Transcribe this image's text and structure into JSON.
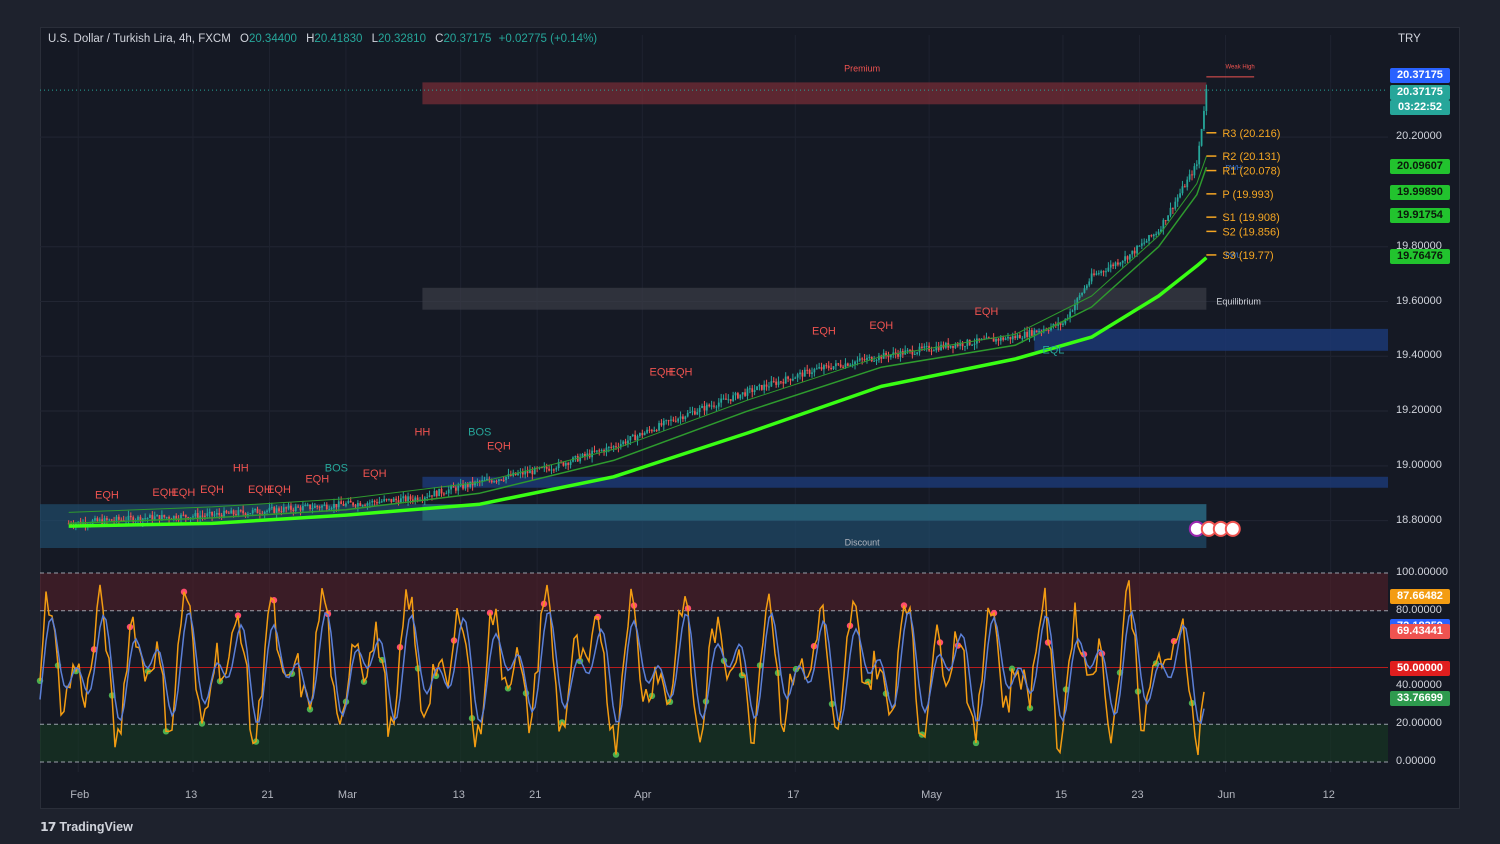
{
  "header": {
    "symbol": "U.S. Dollar / Turkish Lira, 4h, FXCM",
    "o_label": "O",
    "o_value": "20.34400",
    "h_label": "H",
    "h_value": "20.41830",
    "l_label": "L",
    "l_value": "20.32810",
    "c_label": "C",
    "c_value": "20.37175",
    "change": "+0.02775 (+0.14%)",
    "currency": "TRY"
  },
  "footer": {
    "logo_mark": "17",
    "logo_text": "TradingView"
  },
  "colors": {
    "background": "#151924",
    "up": "#26a69a",
    "down": "#ef5350",
    "ema_bright": "#39ff14",
    "ema_dark": "#2e9a2e",
    "premium_zone": "#7a2d37",
    "discount_zone": "#1f4b6b",
    "equilibrium_zone": "#3a3d47",
    "pivot": "#f5a623",
    "rsi_line": "#5b7fd6",
    "stoch_line": "#f39c12"
  },
  "chart_data": [
    {
      "type": "candlestick",
      "title": "U.S. Dollar / Turkish Lira, 4h, FXCM",
      "ylim": [
        18.7,
        20.5
      ],
      "y_ticks": [
        "20.20000",
        "19.80000",
        "19.60000",
        "19.40000",
        "19.20000",
        "19.00000",
        "18.80000"
      ],
      "x_ticks": [
        "Feb",
        "13",
        "21",
        "Mar",
        "13",
        "21",
        "Apr",
        "17",
        "May",
        "15",
        "23",
        "Jun",
        "12"
      ],
      "x_dates": [
        "2023-02-01",
        "2023-02-13",
        "2023-02-21",
        "2023-03-01",
        "2023-03-13",
        "2023-03-21",
        "2023-04-01",
        "2023-04-17",
        "2023-05-01",
        "2023-05-15",
        "2023-05-23",
        "2023-06-01",
        "2023-06-12"
      ],
      "close_path": [
        [
          "2023-01-31",
          18.79
        ],
        [
          "2023-02-08",
          18.81
        ],
        [
          "2023-02-15",
          18.82
        ],
        [
          "2023-02-22",
          18.84
        ],
        [
          "2023-03-01",
          18.86
        ],
        [
          "2023-03-08",
          18.88
        ],
        [
          "2023-03-15",
          18.94
        ],
        [
          "2023-03-22",
          18.99
        ],
        [
          "2023-03-29",
          19.07
        ],
        [
          "2023-04-05",
          19.18
        ],
        [
          "2023-04-12",
          19.27
        ],
        [
          "2023-04-19",
          19.35
        ],
        [
          "2023-04-26",
          19.4
        ],
        [
          "2023-05-03",
          19.44
        ],
        [
          "2023-05-10",
          19.47
        ],
        [
          "2023-05-15",
          19.52
        ],
        [
          "2023-05-18",
          19.69
        ],
        [
          "2023-05-22",
          19.77
        ],
        [
          "2023-05-25",
          19.86
        ],
        [
          "2023-05-27",
          19.98
        ],
        [
          "2023-05-29",
          20.1
        ],
        [
          "2023-05-30",
          20.37175
        ]
      ],
      "ema_fast": [
        [
          "2023-01-31",
          18.79
        ],
        [
          "2023-02-15",
          18.81
        ],
        [
          "2023-03-01",
          18.84
        ],
        [
          "2023-03-15",
          18.9
        ],
        [
          "2023-03-29",
          19.02
        ],
        [
          "2023-04-12",
          19.2
        ],
        [
          "2023-04-26",
          19.36
        ],
        [
          "2023-05-10",
          19.44
        ],
        [
          "2023-05-18",
          19.58
        ],
        [
          "2023-05-25",
          19.8
        ],
        [
          "2023-05-29",
          19.99
        ],
        [
          "2023-05-30",
          20.09
        ]
      ],
      "ema_slow": [
        [
          "2023-01-31",
          18.78
        ],
        [
          "2023-02-15",
          18.79
        ],
        [
          "2023-03-01",
          18.82
        ],
        [
          "2023-03-15",
          18.86
        ],
        [
          "2023-03-29",
          18.96
        ],
        [
          "2023-04-12",
          19.12
        ],
        [
          "2023-04-26",
          19.29
        ],
        [
          "2023-05-10",
          19.39
        ],
        [
          "2023-05-18",
          19.47
        ],
        [
          "2023-05-25",
          19.62
        ],
        [
          "2023-05-29",
          19.73
        ],
        [
          "2023-05-30",
          19.76
        ]
      ],
      "zones": [
        {
          "label": "Premium",
          "from": 20.32,
          "to": 20.4,
          "color": "#7a2d37"
        },
        {
          "label": "Equilibrium",
          "from": 19.57,
          "to": 19.65,
          "color": "#3a3d47"
        },
        {
          "label": "Discount",
          "from": 18.7,
          "to": 18.86,
          "color": "#1f4b6b"
        }
      ],
      "pivots": [
        {
          "label": "R3 (20.216)",
          "value": 20.216
        },
        {
          "label": "R2 (20.131)",
          "value": 20.131
        },
        {
          "label": "R1 (20.078)",
          "value": 20.078
        },
        {
          "label": "P (19.993)",
          "value": 19.993
        },
        {
          "label": "S1 (19.908)",
          "value": 19.908
        },
        {
          "label": "S2 (19.856)",
          "value": 19.856
        },
        {
          "label": "S3 (19.77)",
          "value": 19.77
        }
      ],
      "structure_labels": [
        {
          "text": "EQH",
          "date": "2023-02-04",
          "value": 18.88
        },
        {
          "text": "EQH",
          "date": "2023-02-10",
          "value": 18.89
        },
        {
          "text": "EQH",
          "date": "2023-02-12",
          "value": 18.89
        },
        {
          "text": "EQH",
          "date": "2023-02-15",
          "value": 18.9
        },
        {
          "text": "HH",
          "date": "2023-02-18",
          "value": 18.98
        },
        {
          "text": "EQH",
          "date": "2023-02-20",
          "value": 18.9
        },
        {
          "text": "EQH",
          "date": "2023-02-22",
          "value": 18.9
        },
        {
          "text": "EQH",
          "date": "2023-02-26",
          "value": 18.94
        },
        {
          "text": "BOS",
          "date": "2023-02-28",
          "value": 18.98
        },
        {
          "text": "EQH",
          "date": "2023-03-04",
          "value": 18.96
        },
        {
          "text": "HH",
          "date": "2023-03-09",
          "value": 19.11
        },
        {
          "text": "BOS",
          "date": "2023-03-15",
          "value": 19.11
        },
        {
          "text": "EQH",
          "date": "2023-03-17",
          "value": 19.06
        },
        {
          "text": "EQH",
          "date": "2023-04-03",
          "value": 19.33
        },
        {
          "text": "EQH",
          "date": "2023-04-05",
          "value": 19.33
        },
        {
          "text": "EQH",
          "date": "2023-04-20",
          "value": 19.48
        },
        {
          "text": "EQH",
          "date": "2023-04-26",
          "value": 19.5
        },
        {
          "text": "EQH",
          "date": "2023-05-07",
          "value": 19.55
        },
        {
          "text": "EQL",
          "date": "2023-05-14",
          "value": 19.41
        }
      ],
      "last_price_tags": [
        "20.37175",
        "20.37175",
        "03:22:52"
      ],
      "ema_tags": [
        "20.09607",
        "19.99890",
        "19.91754",
        "19.76476"
      ],
      "annotations": [
        "Weak High",
        "PWH",
        "PWL",
        "Discount",
        "Premium",
        "Equilibrium"
      ]
    },
    {
      "type": "line",
      "title": "",
      "ylim": [
        0,
        100
      ],
      "y_ticks": [
        "100.00000",
        "80.00000",
        "40.00000",
        "20.00000",
        "0.00000"
      ],
      "levels": [
        100,
        80,
        50,
        20,
        0
      ],
      "series_tags": [
        {
          "value": "87.66482",
          "color": "#f39c12"
        },
        {
          "value": "72.18359",
          "color": "#2962ff"
        },
        {
          "value": "69.43441",
          "color": "#ef5350"
        },
        {
          "value": "50.00000",
          "color": "#e01e1e"
        },
        {
          "value": "33.76699",
          "color": "#2e9a4e"
        }
      ]
    }
  ]
}
